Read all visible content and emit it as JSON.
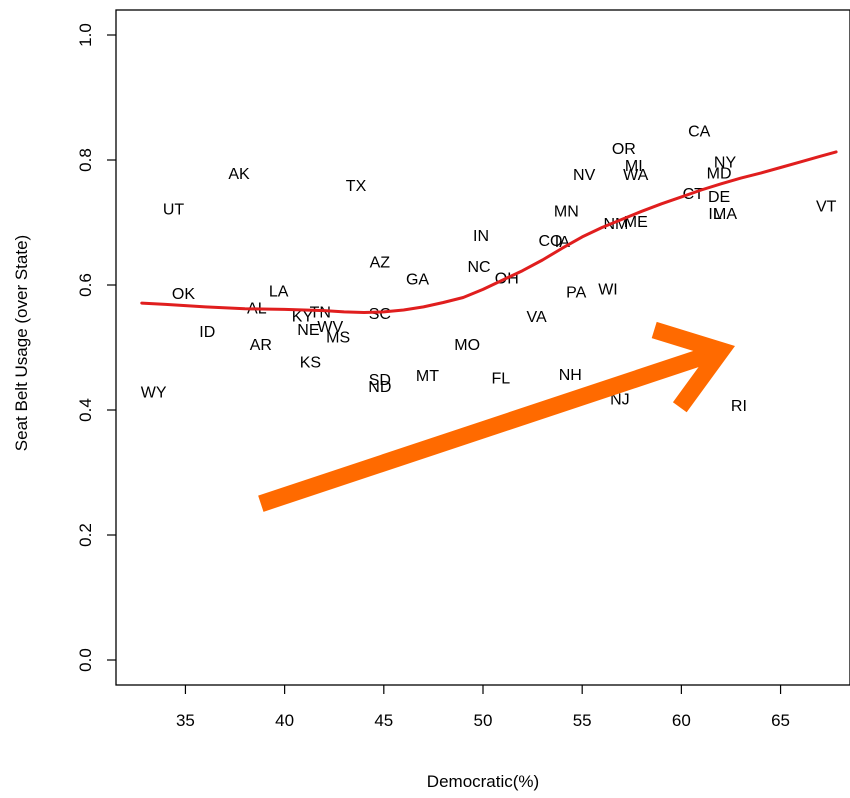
{
  "chart_data": {
    "type": "scatter",
    "xlabel": "Democratic(%)",
    "ylabel": "Seat Belt Usage (over State)",
    "xlim": [
      31.5,
      68.5
    ],
    "ylim": [
      -0.04,
      1.04
    ],
    "x_ticks": [
      35,
      40,
      45,
      50,
      55,
      60,
      65
    ],
    "y_ticks": [
      0.0,
      0.2,
      0.4,
      0.6,
      0.8,
      1.0
    ],
    "x_tick_labels": [
      "35",
      "40",
      "45",
      "50",
      "55",
      "60",
      "65"
    ],
    "y_tick_labels": [
      "0.0",
      "0.2",
      "0.4",
      "0.6",
      "0.8",
      "1.0"
    ],
    "grid": false,
    "points": [
      {
        "label": "WY",
        "x": 33.4,
        "y": 0.427
      },
      {
        "label": "UT",
        "x": 34.4,
        "y": 0.72
      },
      {
        "label": "OK",
        "x": 34.9,
        "y": 0.585
      },
      {
        "label": "ID",
        "x": 36.1,
        "y": 0.524
      },
      {
        "label": "AK",
        "x": 37.7,
        "y": 0.777
      },
      {
        "label": "AR",
        "x": 38.8,
        "y": 0.503
      },
      {
        "label": "AL",
        "x": 38.6,
        "y": 0.562
      },
      {
        "label": "LA",
        "x": 39.7,
        "y": 0.589
      },
      {
        "label": "KY",
        "x": 40.9,
        "y": 0.549
      },
      {
        "label": "TN",
        "x": 41.8,
        "y": 0.555
      },
      {
        "label": "NE",
        "x": 41.2,
        "y": 0.527
      },
      {
        "label": "WV",
        "x": 42.3,
        "y": 0.532
      },
      {
        "label": "MS",
        "x": 42.7,
        "y": 0.515
      },
      {
        "label": "KS",
        "x": 41.3,
        "y": 0.475
      },
      {
        "label": "TX",
        "x": 43.6,
        "y": 0.758
      },
      {
        "label": "AZ",
        "x": 44.8,
        "y": 0.635
      },
      {
        "label": "SC",
        "x": 44.8,
        "y": 0.553
      },
      {
        "label": "SD",
        "x": 44.8,
        "y": 0.447
      },
      {
        "label": "ND",
        "x": 44.8,
        "y": 0.436
      },
      {
        "label": "GA",
        "x": 46.7,
        "y": 0.608
      },
      {
        "label": "MT",
        "x": 47.2,
        "y": 0.454
      },
      {
        "label": "MO",
        "x": 49.2,
        "y": 0.503
      },
      {
        "label": "IN",
        "x": 49.9,
        "y": 0.678
      },
      {
        "label": "NC",
        "x": 49.8,
        "y": 0.628
      },
      {
        "label": "OH",
        "x": 51.2,
        "y": 0.61
      },
      {
        "label": "FL",
        "x": 50.9,
        "y": 0.45
      },
      {
        "label": "VA",
        "x": 52.7,
        "y": 0.548
      },
      {
        "label": "CO",
        "x": 53.4,
        "y": 0.67
      },
      {
        "label": "IA",
        "x": 54.0,
        "y": 0.668
      },
      {
        "label": "MN",
        "x": 54.2,
        "y": 0.717
      },
      {
        "label": "PA",
        "x": 54.7,
        "y": 0.587
      },
      {
        "label": "NH",
        "x": 54.4,
        "y": 0.455
      },
      {
        "label": "NV",
        "x": 55.1,
        "y": 0.775
      },
      {
        "label": "WI",
        "x": 56.3,
        "y": 0.592
      },
      {
        "label": "NM",
        "x": 56.7,
        "y": 0.697
      },
      {
        "label": "NJ",
        "x": 56.9,
        "y": 0.416
      },
      {
        "label": "ME",
        "x": 57.7,
        "y": 0.7
      },
      {
        "label": "OR",
        "x": 57.1,
        "y": 0.817
      },
      {
        "label": "MI",
        "x": 57.6,
        "y": 0.79
      },
      {
        "label": "WA",
        "x": 57.7,
        "y": 0.775
      },
      {
        "label": "CA",
        "x": 60.9,
        "y": 0.845
      },
      {
        "label": "CT",
        "x": 60.6,
        "y": 0.745
      },
      {
        "label": "NY",
        "x": 62.2,
        "y": 0.795
      },
      {
        "label": "MD",
        "x": 61.9,
        "y": 0.778
      },
      {
        "label": "DE",
        "x": 61.9,
        "y": 0.74
      },
      {
        "label": "IL",
        "x": 61.7,
        "y": 0.713
      },
      {
        "label": "MA",
        "x": 62.2,
        "y": 0.713
      },
      {
        "label": "RI",
        "x": 62.9,
        "y": 0.406
      },
      {
        "label": "VT",
        "x": 67.3,
        "y": 0.725
      }
    ],
    "smooth_line": {
      "color": "#e01e1e",
      "x": [
        32.8,
        34,
        36,
        38,
        40,
        42,
        43,
        44,
        45,
        46,
        47,
        48,
        49,
        50,
        51,
        52,
        53,
        54,
        55,
        56,
        57,
        58,
        59,
        60,
        61,
        62,
        63,
        64,
        65,
        66,
        67,
        67.8
      ],
      "y": [
        0.571,
        0.569,
        0.565,
        0.562,
        0.561,
        0.559,
        0.557,
        0.556,
        0.557,
        0.56,
        0.565,
        0.572,
        0.58,
        0.593,
        0.608,
        0.623,
        0.64,
        0.659,
        0.677,
        0.692,
        0.705,
        0.718,
        0.73,
        0.741,
        0.752,
        0.762,
        0.771,
        0.779,
        0.788,
        0.797,
        0.806,
        0.813
      ]
    },
    "arrow": {
      "color": "#ff6a00",
      "from": {
        "x": 38.8,
        "y": 0.25
      },
      "to": {
        "x": 62.0,
        "y": 0.495
      }
    }
  }
}
